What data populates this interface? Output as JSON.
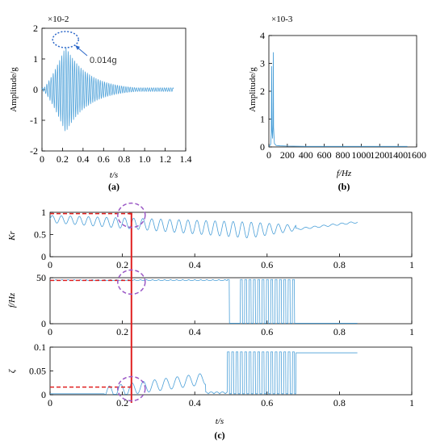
{
  "figure": {
    "panel_labels": [
      "(a)",
      "(b)",
      "(c)"
    ],
    "annotation": "0.014g"
  },
  "colors": {
    "signal": "#4a9fd8",
    "axis": "#000000",
    "reference": "#e02020",
    "highlight": "#9b59c6",
    "annotation_marker": "#2a66c8"
  },
  "chart_data": [
    {
      "id": "a",
      "type": "line",
      "xlabel": "t/s",
      "ylabel": "Amplitude/g",
      "multiplier": "×10-2",
      "xlim": [
        0,
        1.4
      ],
      "ylim": [
        -2,
        2
      ],
      "xticks": [
        "0",
        "0.2",
        "0.4",
        "0.6",
        "0.8",
        "1.0",
        "1.2",
        "1.4"
      ],
      "yticks": [
        "2",
        "1",
        "0",
        "-1",
        "-2"
      ],
      "peak_t": 0.23,
      "peak_amplitude": 1.4,
      "signal_end_t": 1.28,
      "dominant_frequency_hz": 48,
      "annotation_text": "0.014g"
    },
    {
      "id": "b",
      "type": "line",
      "xlabel": "f/Hz",
      "ylabel": "Amplitude/g",
      "multiplier": "×10-3",
      "xlim": [
        0,
        1600
      ],
      "ylim": [
        0,
        4
      ],
      "xticks": [
        "0",
        "200",
        "400",
        "600",
        "800",
        "1000",
        "1200",
        "1400",
        "1600"
      ],
      "yticks": [
        "4",
        "3",
        "2",
        "1",
        "0"
      ],
      "peak_frequency_hz": 48,
      "peak_amplitude": 3.4,
      "secondary_peak_frequency_hz": 30,
      "secondary_peak_amplitude": 2.9
    },
    {
      "id": "c1",
      "type": "line",
      "ylabel": "Kr",
      "xlim": [
        0,
        1
      ],
      "ylim": [
        0,
        1
      ],
      "xticks": [
        "0",
        "0.2",
        "0.4",
        "0.6",
        "0.8",
        "1"
      ],
      "yticks": [
        "1",
        "0.5",
        "0"
      ],
      "reference_t": 0.225,
      "reference_value": 0.97,
      "signal_end_t": 0.85,
      "end_value": 0.78
    },
    {
      "id": "c2",
      "type": "line",
      "ylabel": "f/Hz",
      "xlim": [
        0,
        1
      ],
      "ylim": [
        0,
        50
      ],
      "xticks": [
        "0",
        "0.2",
        "0.4",
        "0.6",
        "0.8",
        "1"
      ],
      "yticks": [
        "50",
        "0"
      ],
      "reference_t": 0.225,
      "reference_value": 47,
      "drop_start_t": 0.49,
      "drop_end_t": 0.68,
      "signal_end_t": 0.85
    },
    {
      "id": "c3",
      "type": "line",
      "xlabel": "t/s",
      "ylabel": "ζ",
      "xlim": [
        0,
        1
      ],
      "ylim": [
        0,
        0.1
      ],
      "xticks": [
        "0",
        "0.2",
        "0.4",
        "0.6",
        "0.8",
        "1"
      ],
      "yticks": [
        "0.1",
        "0.05",
        "0"
      ],
      "reference_t": 0.225,
      "reference_value": 0.016,
      "jump_start_t": 0.49,
      "jump_end_t": 0.68,
      "final_value": 0.088,
      "signal_end_t": 0.85
    }
  ]
}
